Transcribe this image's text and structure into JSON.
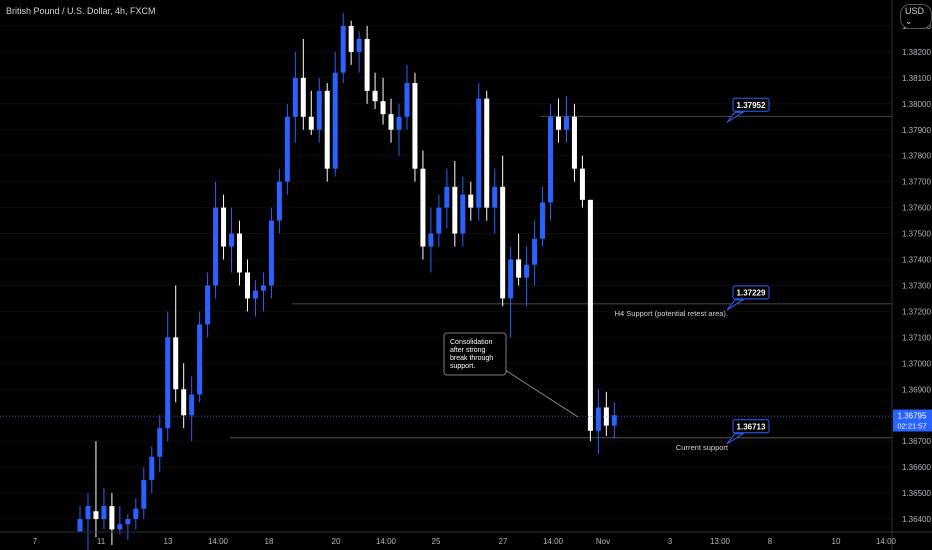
{
  "header": {
    "symbol": "British Pound / U.S. Dollar, 4h, FXCM",
    "currency": "USD",
    "currency_icon": "chevron-down-icon"
  },
  "colors": {
    "up": "#2962ff",
    "down": "#ffffff",
    "accent": "#2962ff",
    "line": "#4a4a4a",
    "bg": "#000000",
    "axis_text": "#b2b5be"
  },
  "chart_data": {
    "type": "candlestick",
    "ylim": [
      1.3635,
      1.384
    ],
    "y_ticks": [
      "1.36400",
      "1.36500",
      "1.36600",
      "1.36700",
      "1.36800",
      "1.36900",
      "1.37000",
      "1.37100",
      "1.37200",
      "1.37300",
      "1.37400",
      "1.37500",
      "1.37600",
      "1.37700",
      "1.37800",
      "1.37900",
      "1.38000",
      "1.38100",
      "1.38200",
      "1.38300"
    ],
    "x_ticks": [
      "7",
      "11",
      "13",
      "14:00",
      "18",
      "20",
      "14:00",
      "25",
      "27",
      "14:00",
      "Nov",
      "3",
      "13:00",
      "8",
      "10",
      "14:00"
    ],
    "price_label": {
      "value": "1.36795",
      "timer": "02:21:57"
    },
    "levels": [
      {
        "value": 1.37952,
        "label": "1.37952",
        "note": ""
      },
      {
        "value": 1.37229,
        "label": "1.37229",
        "note": "H4 Support (potential retest area)."
      },
      {
        "value": 1.36713,
        "label": "1.36713",
        "note": "Current support"
      }
    ],
    "callout": {
      "text": [
        "Consolidation",
        "after strong",
        "break through",
        "support."
      ]
    },
    "candles": [
      [
        1.3635,
        1.3645,
        1.3635,
        1.364
      ],
      [
        1.364,
        1.365,
        1.3628,
        1.3645
      ],
      [
        1.3643,
        1.367,
        1.3633,
        1.364
      ],
      [
        1.364,
        1.3652,
        1.3636,
        1.3645
      ],
      [
        1.3645,
        1.365,
        1.363,
        1.3636
      ],
      [
        1.3636,
        1.3645,
        1.3634,
        1.3638
      ],
      [
        1.3638,
        1.3642,
        1.3632,
        1.364
      ],
      [
        1.364,
        1.3648,
        1.3636,
        1.3644
      ],
      [
        1.3644,
        1.366,
        1.364,
        1.3655
      ],
      [
        1.3655,
        1.3668,
        1.365,
        1.3664
      ],
      [
        1.3664,
        1.368,
        1.3658,
        1.3675
      ],
      [
        1.3675,
        1.372,
        1.367,
        1.371
      ],
      [
        1.371,
        1.373,
        1.3685,
        1.369
      ],
      [
        1.369,
        1.37,
        1.3675,
        1.368
      ],
      [
        1.368,
        1.3695,
        1.367,
        1.3688
      ],
      [
        1.3688,
        1.372,
        1.3685,
        1.3715
      ],
      [
        1.3715,
        1.3735,
        1.371,
        1.373
      ],
      [
        1.373,
        1.377,
        1.3725,
        1.376
      ],
      [
        1.376,
        1.3765,
        1.374,
        1.3745
      ],
      [
        1.3745,
        1.376,
        1.3735,
        1.375
      ],
      [
        1.375,
        1.3755,
        1.373,
        1.3735
      ],
      [
        1.3735,
        1.374,
        1.372,
        1.3725
      ],
      [
        1.3725,
        1.3732,
        1.3718,
        1.3728
      ],
      [
        1.3728,
        1.3735,
        1.372,
        1.373
      ],
      [
        1.373,
        1.376,
        1.3725,
        1.3755
      ],
      [
        1.3755,
        1.3775,
        1.375,
        1.377
      ],
      [
        1.377,
        1.38,
        1.3765,
        1.3795
      ],
      [
        1.3795,
        1.382,
        1.3785,
        1.381
      ],
      [
        1.381,
        1.3825,
        1.379,
        1.3795
      ],
      [
        1.3795,
        1.3805,
        1.3788,
        1.379
      ],
      [
        1.379,
        1.381,
        1.3785,
        1.3805
      ],
      [
        1.3805,
        1.3808,
        1.377,
        1.3775
      ],
      [
        1.3775,
        1.382,
        1.3772,
        1.3812
      ],
      [
        1.3812,
        1.3835,
        1.3808,
        1.383
      ],
      [
        1.383,
        1.3832,
        1.3815,
        1.382
      ],
      [
        1.382,
        1.3828,
        1.3812,
        1.3825
      ],
      [
        1.3825,
        1.383,
        1.38,
        1.3805
      ],
      [
        1.3805,
        1.3812,
        1.3798,
        1.3801
      ],
      [
        1.3801,
        1.381,
        1.3792,
        1.3796
      ],
      [
        1.3796,
        1.3802,
        1.3785,
        1.379
      ],
      [
        1.379,
        1.38,
        1.378,
        1.3795
      ],
      [
        1.3795,
        1.3815,
        1.379,
        1.3808
      ],
      [
        1.3808,
        1.3812,
        1.377,
        1.3775
      ],
      [
        1.3775,
        1.3782,
        1.374,
        1.3745
      ],
      [
        1.3745,
        1.376,
        1.3735,
        1.375
      ],
      [
        1.375,
        1.3765,
        1.3745,
        1.376
      ],
      [
        1.376,
        1.3775,
        1.3752,
        1.3768
      ],
      [
        1.3768,
        1.3778,
        1.3745,
        1.375
      ],
      [
        1.375,
        1.3772,
        1.3745,
        1.3765
      ],
      [
        1.3765,
        1.377,
        1.3755,
        1.376
      ],
      [
        1.376,
        1.3808,
        1.3755,
        1.3802
      ],
      [
        1.3802,
        1.3805,
        1.3755,
        1.376
      ],
      [
        1.376,
        1.3775,
        1.375,
        1.3768
      ],
      [
        1.3768,
        1.378,
        1.3722,
        1.3725
      ],
      [
        1.3725,
        1.3745,
        1.371,
        1.374
      ],
      [
        1.374,
        1.375,
        1.373,
        1.3733
      ],
      [
        1.3733,
        1.3745,
        1.3722,
        1.3738
      ],
      [
        1.3738,
        1.3755,
        1.373,
        1.3748
      ],
      [
        1.3748,
        1.3768,
        1.3745,
        1.3762
      ],
      [
        1.3762,
        1.38,
        1.3755,
        1.3795
      ],
      [
        1.3795,
        1.3802,
        1.3785,
        1.379
      ],
      [
        1.379,
        1.3803,
        1.3785,
        1.3795
      ],
      [
        1.3795,
        1.38,
        1.377,
        1.3775
      ],
      [
        1.3775,
        1.378,
        1.376,
        1.3763
      ],
      [
        1.3763,
        1.3763,
        1.367,
        1.3674
      ],
      [
        1.3674,
        1.369,
        1.3665,
        1.3683
      ],
      [
        1.3683,
        1.3689,
        1.3672,
        1.3676
      ],
      [
        1.3676,
        1.3685,
        1.3671,
        1.368
      ]
    ]
  }
}
